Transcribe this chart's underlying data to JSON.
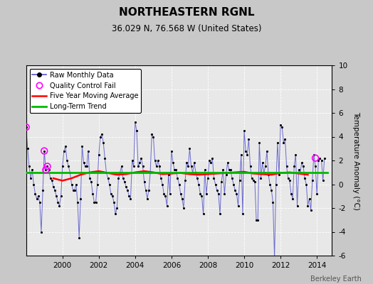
{
  "title": "NORTHEASTERN RGNL",
  "subtitle": "36.029 N, 76.568 W (United States)",
  "ylabel": "Temperature Anomaly (°C)",
  "credit": "Berkeley Earth",
  "ylim": [
    -6,
    10
  ],
  "yticks": [
    -6,
    -4,
    -2,
    0,
    2,
    4,
    6,
    8,
    10
  ],
  "xlim": [
    1998.0,
    2014.83
  ],
  "xticks": [
    2000,
    2002,
    2004,
    2006,
    2008,
    2010,
    2012,
    2014
  ],
  "bg_color": "#c8c8c8",
  "plot_bg_color": "#e8e8e8",
  "raw_data": {
    "times": [
      1998.0,
      1998.083,
      1998.167,
      1998.25,
      1998.333,
      1998.417,
      1998.5,
      1998.583,
      1998.667,
      1998.75,
      1998.833,
      1998.917,
      1999.0,
      1999.083,
      1999.167,
      1999.25,
      1999.333,
      1999.417,
      1999.5,
      1999.583,
      1999.667,
      1999.75,
      1999.833,
      1999.917,
      2000.0,
      2000.083,
      2000.167,
      2000.25,
      2000.333,
      2000.417,
      2000.5,
      2000.583,
      2000.667,
      2000.75,
      2000.833,
      2000.917,
      2001.0,
      2001.083,
      2001.167,
      2001.25,
      2001.333,
      2001.417,
      2001.5,
      2001.583,
      2001.667,
      2001.75,
      2001.833,
      2001.917,
      2002.0,
      2002.083,
      2002.167,
      2002.25,
      2002.333,
      2002.417,
      2002.5,
      2002.583,
      2002.667,
      2002.75,
      2002.833,
      2002.917,
      2003.0,
      2003.083,
      2003.167,
      2003.25,
      2003.333,
      2003.417,
      2003.5,
      2003.583,
      2003.667,
      2003.75,
      2003.833,
      2003.917,
      2004.0,
      2004.083,
      2004.167,
      2004.25,
      2004.333,
      2004.417,
      2004.5,
      2004.583,
      2004.667,
      2004.75,
      2004.833,
      2004.917,
      2005.0,
      2005.083,
      2005.167,
      2005.25,
      2005.333,
      2005.417,
      2005.5,
      2005.583,
      2005.667,
      2005.75,
      2005.833,
      2005.917,
      2006.0,
      2006.083,
      2006.167,
      2006.25,
      2006.333,
      2006.417,
      2006.5,
      2006.583,
      2006.667,
      2006.75,
      2006.833,
      2006.917,
      2007.0,
      2007.083,
      2007.167,
      2007.25,
      2007.333,
      2007.417,
      2007.5,
      2007.583,
      2007.667,
      2007.75,
      2007.833,
      2007.917,
      2008.0,
      2008.083,
      2008.167,
      2008.25,
      2008.333,
      2008.417,
      2008.5,
      2008.583,
      2008.667,
      2008.75,
      2008.833,
      2008.917,
      2009.0,
      2009.083,
      2009.167,
      2009.25,
      2009.333,
      2009.417,
      2009.5,
      2009.583,
      2009.667,
      2009.75,
      2009.833,
      2009.917,
      2010.0,
      2010.083,
      2010.167,
      2010.25,
      2010.333,
      2010.417,
      2010.5,
      2010.583,
      2010.667,
      2010.75,
      2010.833,
      2010.917,
      2011.0,
      2011.083,
      2011.167,
      2011.25,
      2011.333,
      2011.417,
      2011.5,
      2011.583,
      2011.667,
      2011.75,
      2011.833,
      2011.917,
      2012.0,
      2012.083,
      2012.167,
      2012.25,
      2012.333,
      2012.417,
      2012.5,
      2012.583,
      2012.667,
      2012.75,
      2012.833,
      2012.917,
      2013.0,
      2013.083,
      2013.167,
      2013.25,
      2013.333,
      2013.417,
      2013.5,
      2013.583,
      2013.667,
      2013.75,
      2013.833,
      2013.917,
      2014.0,
      2014.083,
      2014.167,
      2014.25,
      2014.333,
      2014.417
    ],
    "values": [
      4.8,
      3.0,
      1.5,
      0.5,
      1.2,
      0.0,
      -0.8,
      -1.2,
      -1.0,
      -1.5,
      -4.0,
      -0.5,
      2.8,
      1.2,
      1.5,
      1.2,
      0.5,
      0.3,
      -0.2,
      -0.5,
      -1.0,
      -1.5,
      -1.8,
      -1.0,
      1.5,
      2.8,
      3.2,
      2.0,
      1.5,
      1.0,
      0.0,
      -0.5,
      -0.5,
      0.0,
      -1.5,
      -4.5,
      -1.2,
      3.2,
      1.8,
      1.5,
      1.5,
      2.8,
      0.5,
      0.2,
      -0.8,
      -1.5,
      -1.5,
      0.0,
      2.5,
      4.0,
      4.2,
      3.5,
      2.2,
      1.0,
      0.5,
      0.0,
      -0.8,
      -1.0,
      -1.5,
      -2.5,
      -2.0,
      0.5,
      1.0,
      1.5,
      0.5,
      0.2,
      -0.2,
      -0.5,
      -1.0,
      -1.2,
      2.0,
      1.5,
      5.2,
      4.5,
      1.5,
      1.8,
      2.2,
      1.5,
      0.2,
      -0.5,
      -1.2,
      -0.5,
      1.0,
      4.2,
      4.0,
      2.0,
      1.5,
      2.0,
      1.5,
      0.5,
      0.0,
      -0.8,
      -1.0,
      -1.8,
      0.8,
      -0.8,
      2.8,
      1.8,
      1.2,
      1.2,
      0.5,
      0.0,
      -0.8,
      -1.2,
      -2.0,
      0.3,
      1.8,
      1.5,
      3.0,
      1.5,
      1.0,
      1.8,
      1.0,
      0.5,
      0.0,
      -0.8,
      -1.0,
      -2.5,
      1.2,
      -0.8,
      0.5,
      2.0,
      1.8,
      2.2,
      0.5,
      0.0,
      -0.5,
      -0.8,
      -2.5,
      0.2,
      1.2,
      -0.8,
      0.8,
      1.8,
      1.2,
      1.2,
      0.5,
      0.0,
      -0.5,
      -0.8,
      -1.8,
      0.3,
      2.5,
      -2.5,
      4.5,
      2.8,
      2.5,
      3.8,
      1.5,
      0.5,
      0.3,
      0.2,
      -3.0,
      -3.0,
      3.5,
      0.5,
      1.8,
      1.0,
      1.5,
      2.8,
      0.8,
      0.0,
      -0.5,
      -1.5,
      -6.2,
      0.0,
      3.5,
      0.8,
      5.0,
      4.8,
      3.5,
      3.8,
      1.5,
      0.5,
      0.3,
      -0.8,
      -1.2,
      1.5,
      2.5,
      -1.8,
      1.2,
      1.0,
      1.8,
      1.5,
      0.5,
      0.0,
      -1.8,
      -1.2,
      -2.2,
      0.3,
      2.5,
      1.5,
      -0.8,
      2.0,
      2.2,
      2.0,
      0.3,
      2.2
    ],
    "qc_fail_times": [
      1998.0,
      1999.0,
      1999.083,
      1999.167,
      2013.917
    ],
    "qc_fail_values": [
      4.8,
      2.8,
      1.2,
      1.5,
      2.2
    ]
  },
  "moving_avg": {
    "times": [
      1999.5,
      2000.0,
      2000.5,
      2001.0,
      2001.5,
      2002.0,
      2002.5,
      2003.0,
      2003.5,
      2004.0,
      2004.5,
      2005.0,
      2005.5,
      2006.0,
      2006.5,
      2007.0,
      2007.5,
      2008.0,
      2008.5,
      2009.0,
      2009.5,
      2010.0,
      2010.5,
      2011.0,
      2011.5,
      2012.0,
      2012.5,
      2013.0,
      2013.5
    ],
    "values": [
      0.5,
      0.3,
      0.5,
      0.8,
      1.0,
      1.1,
      0.95,
      0.8,
      0.85,
      1.0,
      1.1,
      1.0,
      0.85,
      0.9,
      0.95,
      0.85,
      0.8,
      0.85,
      0.9,
      0.95,
      1.0,
      1.05,
      0.9,
      0.85,
      0.8,
      0.95,
      1.0,
      0.9,
      0.8
    ]
  },
  "long_term_trend": {
    "times": [
      1998.0,
      2014.6
    ],
    "values": [
      1.0,
      1.0
    ]
  },
  "raw_color": "#5555cc",
  "moving_avg_color": "#ff0000",
  "long_term_color": "#00bb00",
  "qc_color": "#ff00ff",
  "dot_color": "#000000",
  "grid_color": "#ffffff",
  "title_fontsize": 11,
  "subtitle_fontsize": 8.5,
  "tick_fontsize": 7.5,
  "ylabel_fontsize": 7.5,
  "legend_fontsize": 7,
  "credit_fontsize": 7
}
